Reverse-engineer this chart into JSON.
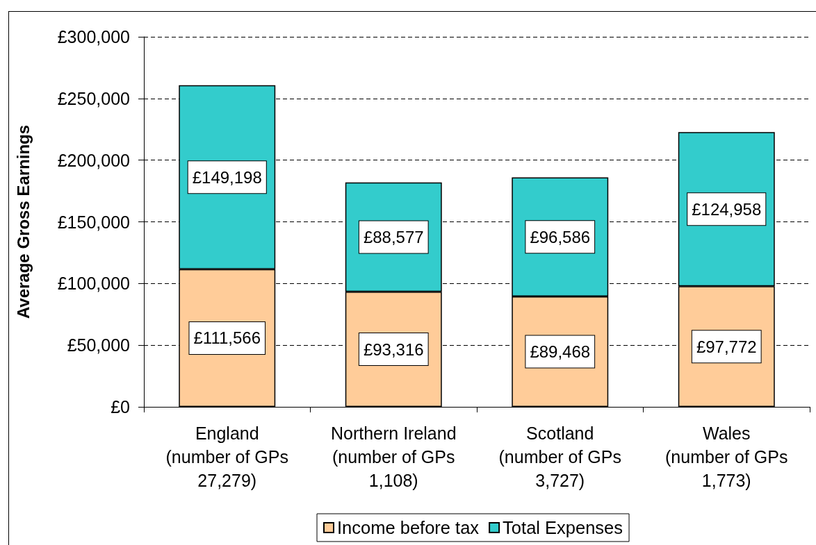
{
  "chart_data": {
    "type": "bar",
    "stacked": true,
    "ylabel": "Average Gross Earnings",
    "categories": [
      "England (number of GPs 27,279)",
      "Northern Ireland (number of GPs 1,108)",
      "Scotland (number of GPs 3,727)",
      "Wales (number of GPs 1,773)"
    ],
    "series": [
      {
        "name": "Income before tax",
        "color": "#ffcc99",
        "values": [
          111566,
          93316,
          89468,
          97772
        ],
        "value_labels": [
          "£111,566",
          "£93,316",
          "£89,468",
          "£97,772"
        ]
      },
      {
        "name": "Total Expenses",
        "color": "#33cccc",
        "values": [
          149198,
          88577,
          96586,
          124958
        ],
        "value_labels": [
          "£149,198",
          "£88,577",
          "£96,586",
          "£124,958"
        ]
      }
    ],
    "ylim": [
      0,
      300000
    ],
    "yticks": [
      {
        "value": 0,
        "label": "£0"
      },
      {
        "value": 50000,
        "label": "£50,000"
      },
      {
        "value": 100000,
        "label": "£100,000"
      },
      {
        "value": 150000,
        "label": "£150,000"
      },
      {
        "value": 200000,
        "label": "£200,000"
      },
      {
        "value": 250000,
        "label": "£250,000"
      },
      {
        "value": 300000,
        "label": "£300,000"
      }
    ],
    "grid": "y",
    "legend": "bottom"
  }
}
